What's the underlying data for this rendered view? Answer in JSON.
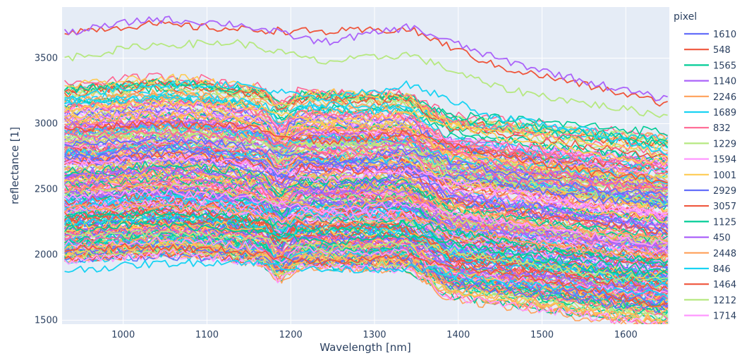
{
  "chart_data": {
    "type": "line",
    "xlabel": "Wavelength [nm]",
    "ylabel": "reflectance [1]",
    "legend_title": "pixel",
    "legend_placement": "right",
    "grid": true,
    "xlim": [
      927,
      1652
    ],
    "ylim": [
      1470,
      3890
    ],
    "xticks": [
      1000,
      1100,
      1200,
      1300,
      1400,
      1500,
      1600
    ],
    "yticks": [
      1500,
      2000,
      2500,
      3000,
      3500
    ],
    "x_range_sampled": [
      930,
      1650
    ],
    "visible_legend_series": [
      {
        "name": "1610",
        "color": "#636efa",
        "values_approx": [
          2740,
          2730,
          2690,
          2500,
          2620,
          2560,
          2430,
          2380
        ]
      },
      {
        "name": "548",
        "color": "#EF553B",
        "values_approx": [
          3700,
          3760,
          3720,
          3700,
          3720,
          3440,
          3300,
          3150
        ]
      },
      {
        "name": "1565",
        "color": "#00cc96",
        "values_approx": [
          2300,
          2320,
          2280,
          2180,
          2240,
          2120,
          2000,
          1950
        ]
      },
      {
        "name": "1140",
        "color": "#ab63fa",
        "values_approx": [
          3690,
          3800,
          3760,
          3620,
          3740,
          3500,
          3330,
          3180
        ]
      },
      {
        "name": "2246",
        "color": "#FFA15A",
        "values_approx": [
          2500,
          2520,
          2470,
          2350,
          2430,
          2300,
          2180,
          2110
        ]
      },
      {
        "name": "1689",
        "color": "#19d3f3",
        "values_approx": [
          1880,
          1930,
          1950,
          1880,
          1900,
          1790,
          1740,
          1700
        ]
      },
      {
        "name": "832",
        "color": "#FF6692",
        "values_approx": [
          2900,
          2940,
          2900,
          2780,
          2860,
          2700,
          2580,
          2500
        ]
      },
      {
        "name": "1229",
        "color": "#B6E880",
        "values_approx": [
          3500,
          3600,
          3620,
          3470,
          3530,
          3280,
          3160,
          3060
        ]
      },
      {
        "name": "1594",
        "color": "#FF97FF",
        "values_approx": [
          2450,
          2480,
          2450,
          2330,
          2390,
          2260,
          2150,
          2080
        ]
      },
      {
        "name": "1001",
        "color": "#FECB52",
        "values_approx": [
          3100,
          3160,
          3150,
          3000,
          3080,
          2900,
          2780,
          2700
        ]
      },
      {
        "name": "2929",
        "color": "#636efa",
        "values_approx": [
          2850,
          2880,
          2840,
          2700,
          2790,
          2640,
          2520,
          2450
        ]
      },
      {
        "name": "3057",
        "color": "#EF553B",
        "values_approx": [
          2050,
          2060,
          2030,
          1940,
          1980,
          1860,
          1750,
          1600
        ]
      },
      {
        "name": "1125",
        "color": "#00cc96",
        "values_approx": [
          2200,
          2230,
          2200,
          2090,
          2150,
          2020,
          1900,
          1840
        ]
      },
      {
        "name": "450",
        "color": "#ab63fa",
        "values_approx": [
          2600,
          2640,
          2600,
          2470,
          2550,
          2400,
          2290,
          2220
        ]
      },
      {
        "name": "2448",
        "color": "#FFA15A",
        "values_approx": [
          2350,
          2370,
          2330,
          2220,
          2280,
          2150,
          2040,
          1980
        ]
      },
      {
        "name": "846",
        "color": "#19d3f3",
        "values_approx": [
          3200,
          3300,
          3300,
          3180,
          3300,
          3050,
          2950,
          2780
        ]
      },
      {
        "name": "1464",
        "color": "#EF553B",
        "values_approx": [
          2950,
          3000,
          2980,
          2860,
          2920,
          2760,
          2640,
          2560
        ]
      },
      {
        "name": "1212",
        "color": "#B6E880",
        "values_approx": [
          2150,
          2170,
          2140,
          2040,
          2090,
          1970,
          1860,
          1800
        ]
      },
      {
        "name": "1714",
        "color": "#FF97FF",
        "values_approx": [
          2700,
          2740,
          2700,
          2570,
          2650,
          2500,
          2380,
          2300
        ]
      }
    ]
  },
  "palette": [
    "#636efa",
    "#EF553B",
    "#00cc96",
    "#ab63fa",
    "#FFA15A",
    "#19d3f3",
    "#FF6692",
    "#B6E880",
    "#FF97FF",
    "#FECB52"
  ],
  "colors": {
    "plot_bg": "#e5ecf6",
    "grid": "#ffffff",
    "text": "#2a3f5f"
  }
}
